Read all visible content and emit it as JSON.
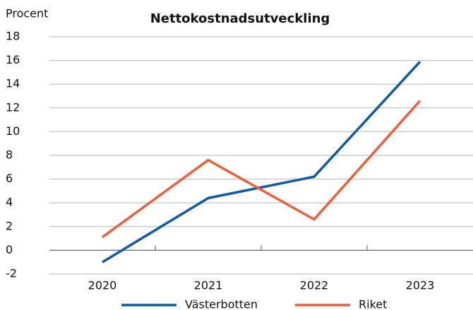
{
  "chart_data": {
    "type": "line",
    "title": "Nettokostnadsutveckling",
    "y_label": "Procent",
    "categories": [
      "2020",
      "2021",
      "2022",
      "2023"
    ],
    "series": [
      {
        "name": "Västerbotten",
        "color": "#0e5aa7",
        "values": [
          -1.0,
          4.4,
          6.2,
          15.9
        ]
      },
      {
        "name": "Riket",
        "color": "#e8603c",
        "values": [
          1.1,
          7.6,
          2.6,
          12.6
        ]
      }
    ],
    "ylim": [
      -2,
      18
    ],
    "yticks": [
      -2,
      0,
      2,
      4,
      6,
      8,
      10,
      12,
      14,
      16,
      18
    ],
    "grid": true
  }
}
